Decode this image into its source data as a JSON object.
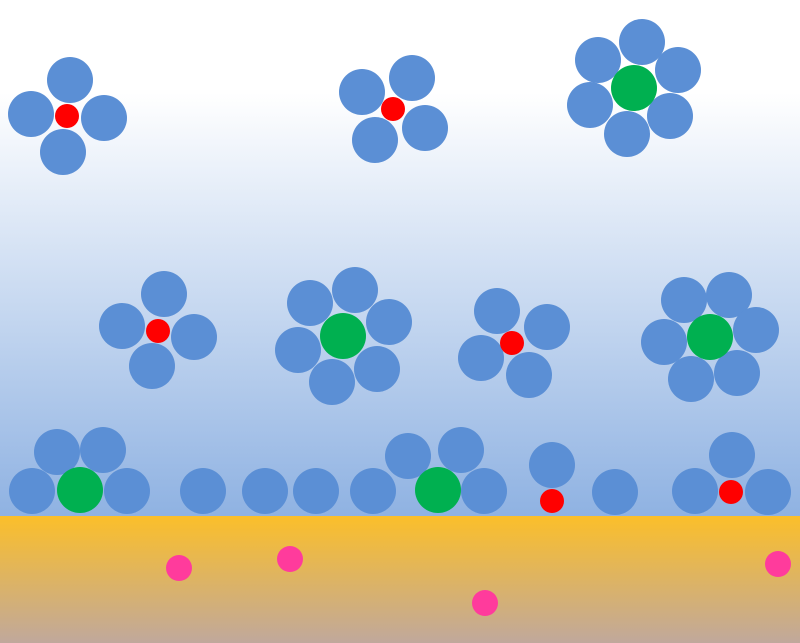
{
  "colors": {
    "sky_top": "#ffffff",
    "sky_bottom": "#8fb2e2",
    "ground_top": "#fbbf2a",
    "ground_bottom": "#c0a89c",
    "ligand": "#5b8fd5",
    "small_center": "#ff0000",
    "large_center": "#00b050",
    "loose_particle": "#ff3b9c"
  },
  "legend": []
}
